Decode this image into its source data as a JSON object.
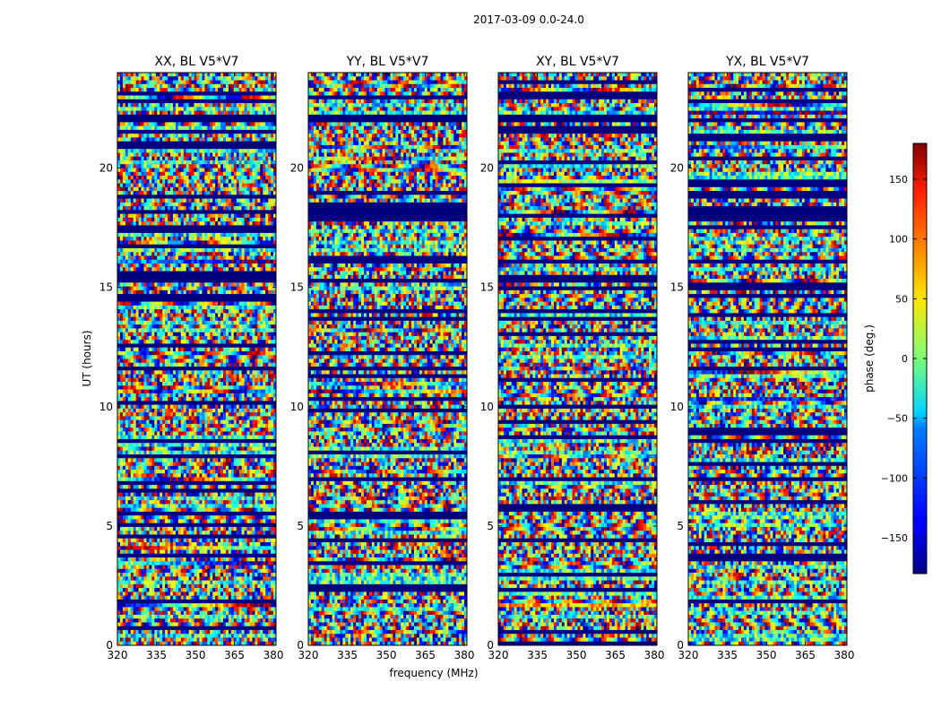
{
  "figure": {
    "suptitle": "2017-03-09 0.0-24.0",
    "xlabel": "frequency (MHz)",
    "ylabel": "UT (hours)"
  },
  "chart_data": [
    {
      "type": "heatmap",
      "title": "XX, BL V5*V7",
      "xlabel": "frequency (MHz)",
      "ylabel": "UT (hours)",
      "xlim": [
        320,
        381
      ],
      "ylim": [
        0,
        24
      ],
      "xticks": [
        320,
        335,
        350,
        365,
        380
      ],
      "yticks": [
        0,
        5,
        10,
        15,
        20
      ],
      "seed": 11
    },
    {
      "type": "heatmap",
      "title": "YY, BL V5*V7",
      "xlabel": "",
      "ylabel": "",
      "xlim": [
        320,
        381
      ],
      "ylim": [
        0,
        24
      ],
      "xticks": [
        320,
        335,
        350,
        365,
        380
      ],
      "yticks": [
        0,
        5,
        10,
        15,
        20
      ],
      "seed": 23
    },
    {
      "type": "heatmap",
      "title": "XY, BL V5*V7",
      "xlabel": "",
      "ylabel": "",
      "xlim": [
        320,
        381
      ],
      "ylim": [
        0,
        24
      ],
      "xticks": [
        320,
        335,
        350,
        365,
        380
      ],
      "yticks": [
        0,
        5,
        10,
        15,
        20
      ],
      "seed": 37
    },
    {
      "type": "heatmap",
      "title": "YX, BL V5*V7",
      "xlabel": "",
      "ylabel": "",
      "xlim": [
        320,
        381
      ],
      "ylim": [
        0,
        24
      ],
      "xticks": [
        320,
        335,
        350,
        365,
        380
      ],
      "yticks": [
        0,
        5,
        10,
        15,
        20
      ],
      "seed": 53
    }
  ],
  "colorbar": {
    "label": "phase (deg.)",
    "range": [
      -180,
      180
    ],
    "ticks": [
      -150,
      -100,
      -50,
      0,
      50,
      100,
      150
    ],
    "tick_labels": [
      "−150",
      "−100",
      "−50",
      "0",
      "50",
      "100",
      "150"
    ],
    "colormap": "jet"
  }
}
